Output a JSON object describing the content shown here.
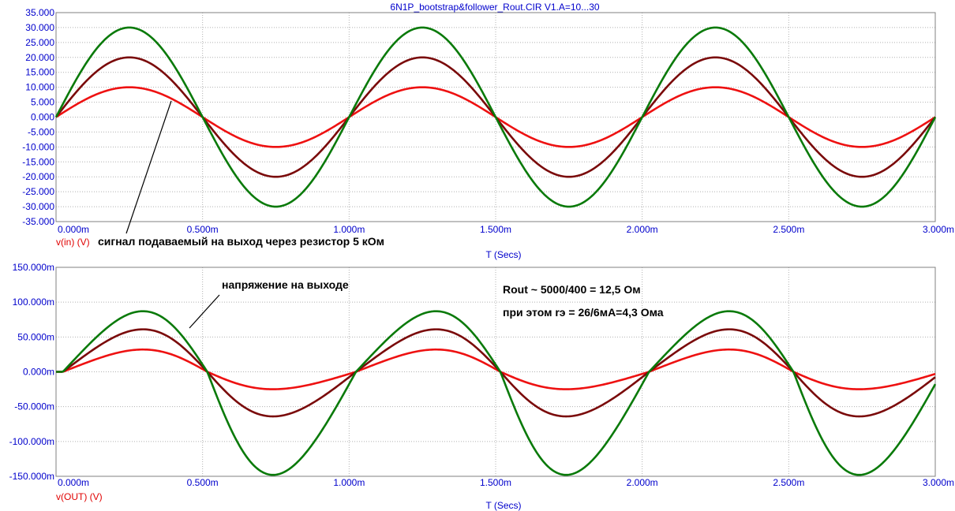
{
  "window": {
    "title": "6N1P_bootstrap&follower_Rout.CIR V1.A=10...30"
  },
  "annotations": {
    "top": "сигнал подаваемый на выход через резистор 5 кОм",
    "bottom_label": "напряжение на выходе",
    "rout": "Rout ~ 5000/400 = 12,5 Ом",
    "re": "при этом rэ = 26/6мА=4,3 Ома"
  },
  "colors": {
    "series_a10": "#ee1111",
    "series_a20": "#7a0a0a",
    "series_a30": "#0a7a0a",
    "axis_text": "#0000cc",
    "ylabel_text": "#e00000"
  },
  "chart_data": [
    {
      "type": "line",
      "xlabel": "T (Secs)",
      "ylabel": "v(in) (V)",
      "xlim": [
        0,
        0.003
      ],
      "ylim": [
        -35,
        35
      ],
      "x_tick_labels": [
        "0.000m",
        "0.500m",
        "1.000m",
        "1.500m",
        "2.000m",
        "2.500m",
        "3.000m"
      ],
      "x_tick_values": [
        0,
        0.0005,
        0.001,
        0.0015,
        0.002,
        0.0025,
        0.003
      ],
      "y_tick_labels": [
        "35.000",
        "30.000",
        "25.000",
        "20.000",
        "15.000",
        "10.000",
        "5.000",
        "0.000",
        "-5.000",
        "-10.000",
        "-15.000",
        "-20.000",
        "-25.000",
        "-30.000",
        "-35.000"
      ],
      "y_tick_values": [
        35,
        30,
        25,
        20,
        15,
        10,
        5,
        0,
        -5,
        -10,
        -15,
        -20,
        -25,
        -30,
        -35
      ],
      "grid": true,
      "waveform": "sine",
      "frequency_hz": 1000,
      "x": [
        0,
        0.00025,
        0.0005,
        0.00075,
        0.001,
        0.00125,
        0.0015,
        0.00175,
        0.002,
        0.00225,
        0.0025,
        0.00275,
        0.003
      ],
      "series": [
        {
          "amplitude": 10,
          "peak": 10,
          "trough": -10,
          "color": "#ee1111",
          "values": [
            0,
            10,
            0,
            -10,
            0,
            10,
            0,
            -10,
            0,
            10,
            0,
            -10,
            0
          ]
        },
        {
          "amplitude": 20,
          "peak": 20,
          "trough": -20,
          "color": "#7a0a0a",
          "values": [
            0,
            20,
            0,
            -20,
            0,
            20,
            0,
            -20,
            0,
            20,
            0,
            -20,
            0
          ]
        },
        {
          "amplitude": 30,
          "peak": 30,
          "trough": -30,
          "color": "#0a7a0a",
          "values": [
            0,
            30,
            0,
            -30,
            0,
            30,
            0,
            -30,
            0,
            30,
            0,
            -30,
            0
          ]
        }
      ]
    },
    {
      "type": "line",
      "xlabel": "T (Secs)",
      "ylabel": "v(OUT) (V)",
      "xlim": [
        0,
        0.003
      ],
      "ylim": [
        -0.15,
        0.15
      ],
      "x_tick_labels": [
        "0.000m",
        "0.500m",
        "1.000m",
        "1.500m",
        "2.000m",
        "2.500m",
        "3.000m"
      ],
      "x_tick_values": [
        0,
        0.0005,
        0.001,
        0.0015,
        0.002,
        0.0025,
        0.003
      ],
      "y_tick_labels": [
        "150.000m",
        "100.000m",
        "50.000m",
        "0.000m",
        "-50.000m",
        "-100.000m",
        "-150.000m"
      ],
      "y_tick_values": [
        0.15,
        0.1,
        0.05,
        0,
        -0.05,
        -0.1,
        -0.15
      ],
      "grid": true,
      "waveform": "distorted-sine",
      "frequency_hz": 1000,
      "zero_crossings_down": [
        0.00056,
        0.00156,
        0.00256
      ],
      "series": [
        {
          "peak": 0.032,
          "trough": -0.025,
          "color": "#ee1111"
        },
        {
          "peak": 0.061,
          "trough": -0.064,
          "color": "#7a0a0a"
        },
        {
          "peak": 0.087,
          "trough": -0.148,
          "color": "#0a7a0a"
        }
      ]
    }
  ]
}
